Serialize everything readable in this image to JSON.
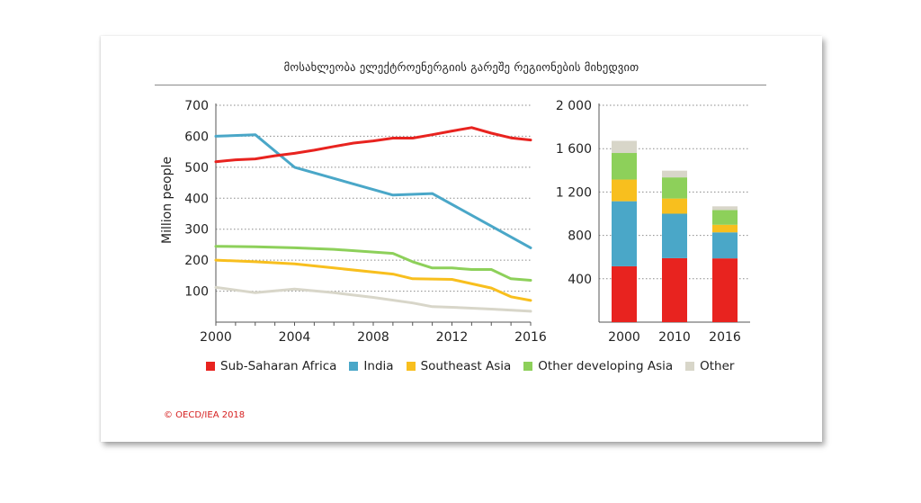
{
  "title": "მოსახლეობა ელექტროენერგიის გარეშე რეგიონების მიხედვით",
  "footer": "© OECD/IEA 2018",
  "colors": {
    "Sub-Saharan Africa": "#e8231f",
    "India": "#4aa7c8",
    "Southeast Asia": "#f8bf1e",
    "Other developing Asia": "#8dd05a",
    "Other": "#d8d6c9"
  },
  "legend": [
    "Sub-Saharan Africa",
    "India",
    "Southeast Asia",
    "Other developing Asia",
    "Other"
  ],
  "chart_data": [
    {
      "type": "line",
      "ylabel": "Million people",
      "xlim": [
        2000,
        2016
      ],
      "ylim": [
        0,
        700
      ],
      "yticks": [
        100,
        200,
        300,
        400,
        500,
        600,
        700
      ],
      "xticks": [
        2000,
        2004,
        2008,
        2012,
        2016
      ],
      "grid": "horizontal dotted",
      "legend_position": "bottom",
      "series": [
        {
          "name": "Sub-Saharan Africa",
          "x": [
            2000,
            2001,
            2002,
            2003,
            2004,
            2005,
            2006,
            2007,
            2008,
            2009,
            2010,
            2011,
            2012,
            2013,
            2014,
            2015,
            2016
          ],
          "values": [
            518,
            524,
            527,
            537,
            545,
            555,
            567,
            578,
            585,
            594,
            594,
            605,
            617,
            628,
            610,
            595,
            588
          ]
        },
        {
          "name": "India",
          "x": [
            2000,
            2002,
            2004,
            2009,
            2011,
            2016
          ],
          "values": [
            600,
            605,
            500,
            410,
            415,
            240
          ]
        },
        {
          "name": "Southeast Asia",
          "x": [
            2000,
            2002,
            2004,
            2006,
            2009,
            2010,
            2012,
            2014,
            2015,
            2016
          ],
          "values": [
            200,
            195,
            188,
            175,
            155,
            140,
            138,
            110,
            82,
            70
          ]
        },
        {
          "name": "Other developing Asia",
          "x": [
            2000,
            2002,
            2004,
            2006,
            2009,
            2010,
            2011,
            2012,
            2013,
            2014,
            2015,
            2016
          ],
          "values": [
            245,
            243,
            240,
            235,
            222,
            195,
            175,
            175,
            170,
            170,
            140,
            135
          ]
        },
        {
          "name": "Other",
          "x": [
            2000,
            2002,
            2004,
            2006,
            2008,
            2010,
            2011,
            2012,
            2014,
            2016
          ],
          "values": [
            112,
            95,
            107,
            95,
            80,
            62,
            50,
            48,
            42,
            35
          ]
        }
      ]
    },
    {
      "type": "bar",
      "stacked": true,
      "categories": [
        "2000",
        "2010",
        "2016"
      ],
      "ylim": [
        0,
        2000
      ],
      "yticks": [
        400,
        800,
        1200,
        1600,
        2000
      ],
      "ytick_labels": [
        "400",
        "800",
        "1 200",
        "1 600",
        "2 000"
      ],
      "grid": "horizontal dotted",
      "series": [
        {
          "name": "Sub-Saharan Africa",
          "values": [
            515,
            590,
            588
          ]
        },
        {
          "name": "India",
          "values": [
            600,
            410,
            240
          ]
        },
        {
          "name": "Southeast Asia",
          "values": [
            200,
            140,
            70
          ]
        },
        {
          "name": "Other developing Asia",
          "values": [
            245,
            195,
            135
          ]
        },
        {
          "name": "Other",
          "values": [
            112,
            62,
            35
          ]
        }
      ]
    }
  ]
}
